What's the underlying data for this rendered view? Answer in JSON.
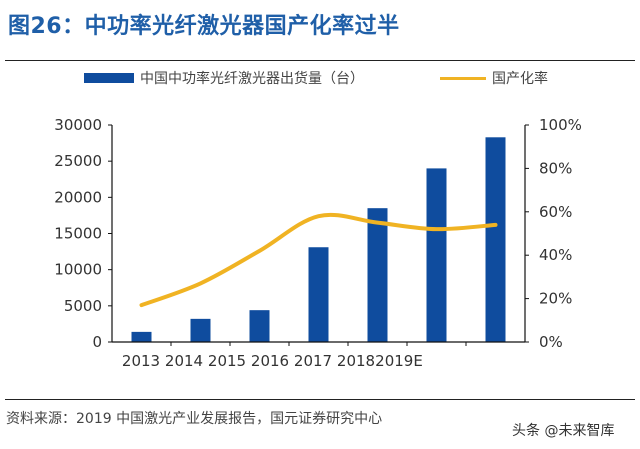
{
  "title": "图26：中功率光纤激光器国产化率过半",
  "source": "资料来源：2019 中国激光产业发展报告，国元证券研究中心",
  "watermark": "头条 @未来智库",
  "chart_data": {
    "type": "bar+line",
    "categories": [
      "2013",
      "2014",
      "2015",
      "2016",
      "2017",
      "2018",
      "2019E"
    ],
    "series": [
      {
        "name": "中国中功率光纤激光器出货量（台）",
        "type": "bar",
        "axis": "left",
        "color": "#0f4c9e",
        "values": [
          1400,
          3200,
          4400,
          13100,
          18500,
          24000,
          28300
        ]
      },
      {
        "name": "国产化率",
        "type": "line",
        "axis": "right",
        "color": "#f0b323",
        "values": [
          0.17,
          0.27,
          0.42,
          0.58,
          0.55,
          0.52,
          0.54
        ]
      }
    ],
    "left_axis": {
      "ylim": [
        0,
        30000
      ],
      "ticks": [
        "0",
        "5000",
        "10000",
        "15000",
        "20000",
        "25000",
        "30000"
      ]
    },
    "right_axis": {
      "ylim": [
        0,
        1
      ],
      "ticks": [
        "0%",
        "20%",
        "40%",
        "60%",
        "80%",
        "100%"
      ]
    },
    "legend_position": "top",
    "grid": false
  }
}
